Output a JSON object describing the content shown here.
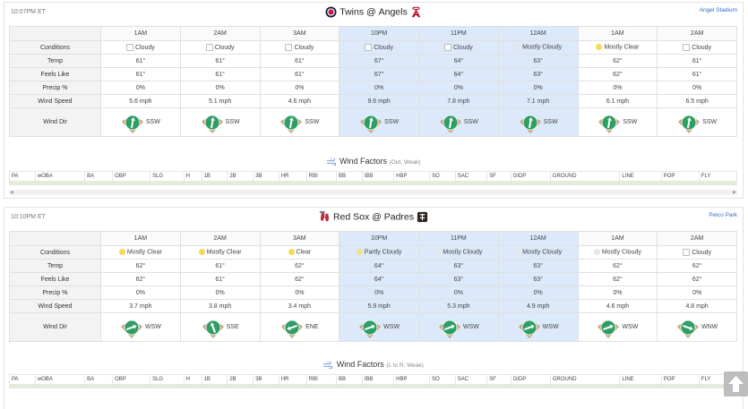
{
  "games": [
    {
      "time": "10:07PM ET",
      "away": "Twins",
      "home": "Angels",
      "at": "@",
      "park": "Angel Stadium",
      "hours": [
        "1AM",
        "2AM",
        "3AM",
        "10PM",
        "11PM",
        "12AM",
        "1AM",
        "2AM"
      ],
      "highlight": [
        false,
        false,
        false,
        true,
        true,
        true,
        false,
        false
      ],
      "row_labels": {
        "conditions": "Conditions",
        "temp": "Temp",
        "feels": "Feels Like",
        "precip": "Precip %",
        "wind_speed": "Wind Speed",
        "wind_dir": "Wind Dir"
      },
      "conditions": [
        "Cloudy",
        "Cloudy",
        "Cloudy",
        "Cloudy",
        "Cloudy",
        "Mostly Cloudy",
        "Mostly Clear",
        "Cloudy"
      ],
      "condition_icons": [
        "cloud",
        "cloud",
        "cloud",
        "cloud",
        "cloud",
        "mc",
        "sun",
        "cloud"
      ],
      "temp": [
        "61°",
        "61°",
        "61°",
        "67°",
        "64°",
        "63°",
        "62°",
        "61°"
      ],
      "feels": [
        "61°",
        "61°",
        "61°",
        "67°",
        "64°",
        "63°",
        "62°",
        "61°"
      ],
      "precip": [
        "0%",
        "0%",
        "0%",
        "0%",
        "0%",
        "0%",
        "0%",
        "0%"
      ],
      "wind_speed": [
        "5.6 mph",
        "5.1 mph",
        "4.6 mph",
        "9.6 mph",
        "7.8 mph",
        "7.1 mph",
        "6.1 mph",
        "6.5 mph"
      ],
      "wind_dir": [
        "SSW",
        "SSW",
        "SSW",
        "SSW",
        "SSW",
        "SSW",
        "SSW",
        "SSW"
      ],
      "wind_angle": [
        190,
        190,
        190,
        190,
        190,
        190,
        190,
        190
      ],
      "wind_factors_title": "Wind Factors",
      "wind_factors_sub": "(Out, Weak)"
    },
    {
      "time": "10:10PM ET",
      "away": "Red Sox",
      "home": "Padres",
      "at": "@",
      "park": "Petco Park",
      "hours": [
        "1AM",
        "2AM",
        "3AM",
        "10PM",
        "11PM",
        "12AM",
        "1AM",
        "2AM"
      ],
      "highlight": [
        false,
        false,
        false,
        true,
        true,
        true,
        false,
        false
      ],
      "row_labels": {
        "conditions": "Conditions",
        "temp": "Temp",
        "feels": "Feels Like",
        "precip": "Precip %",
        "wind_speed": "Wind Speed",
        "wind_dir": "Wind Dir"
      },
      "conditions": [
        "Mostly Clear",
        "Mostly Clear",
        "Clear",
        "Partly Cloudy",
        "Mostly Cloudy",
        "Mostly Cloudy",
        "Mostly Cloudy",
        "Cloudy"
      ],
      "condition_icons": [
        "sun",
        "sun",
        "sun",
        "pc",
        "mc",
        "mc",
        "mc",
        "cloud"
      ],
      "temp": [
        "62°",
        "61°",
        "62°",
        "64°",
        "63°",
        "63°",
        "62°",
        "62°"
      ],
      "feels": [
        "62°",
        "61°",
        "62°",
        "64°",
        "63°",
        "63°",
        "62°",
        "62°"
      ],
      "precip": [
        "0%",
        "0%",
        "0%",
        "0%",
        "0%",
        "0%",
        "0%",
        "0%"
      ],
      "wind_speed": [
        "3.7 mph",
        "3.8 mph",
        "3.4 mph",
        "5.9 mph",
        "5.3 mph",
        "4.9 mph",
        "4.6 mph",
        "4.8 mph"
      ],
      "wind_dir": [
        "WSW",
        "SSE",
        "ENE",
        "WSW",
        "WSW",
        "WSW",
        "WSW",
        "WNW"
      ],
      "wind_angle": [
        250,
        160,
        70,
        250,
        250,
        250,
        250,
        290
      ],
      "wind_factors_title": "Wind Factors",
      "wind_factors_sub": "(L to R, Weak)"
    }
  ],
  "stat_headers": [
    "PA",
    "wOBA",
    "BA",
    "OBP",
    "SLG",
    "H",
    "1B",
    "2B",
    "3B",
    "HR",
    "RBI",
    "BB",
    "IBB",
    "HBP",
    "SO",
    "SAC",
    "SF",
    "GIDP",
    "GROUND",
    "LINE",
    "POP",
    "FLY"
  ],
  "colors": {
    "highlight": "#dce9fb",
    "link": "#2a6fc9",
    "field_grass": "#2e9e64",
    "field_dirt": "#c9a27a"
  }
}
